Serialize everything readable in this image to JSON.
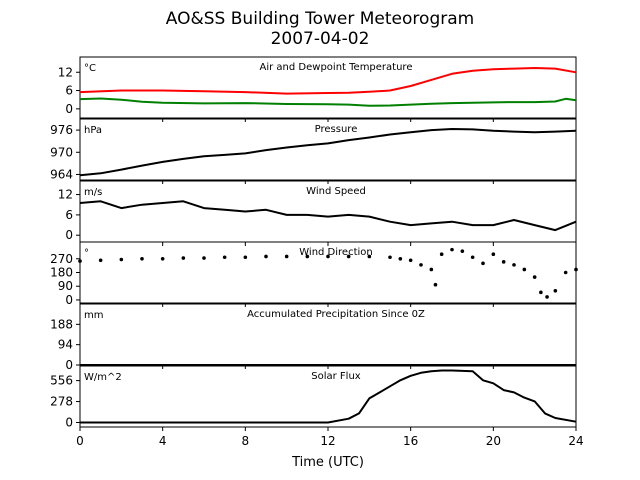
{
  "figure": {
    "title_line1": "AO&SS Building Tower Meteorogram",
    "title_line2": "2007-04-02",
    "xlabel": "Time (UTC)"
  },
  "chart_data": [
    {
      "type": "line",
      "title": "Air and Dewpoint Temperature",
      "unit": "°C",
      "ylim": [
        -3,
        17
      ],
      "yticks": [
        0,
        6,
        12
      ],
      "xlim": [
        0,
        24
      ],
      "xticks": [
        0,
        4,
        8,
        12,
        16,
        20,
        24
      ],
      "series": [
        {
          "color": "#ff0000",
          "x": [
            0,
            2,
            4,
            6,
            8,
            10,
            12,
            13,
            14,
            15,
            16,
            17,
            18,
            19,
            20,
            21,
            22,
            23,
            24
          ],
          "values": [
            5.5,
            6,
            6,
            5.8,
            5.5,
            5,
            5.2,
            5.3,
            5.6,
            6,
            7.5,
            9.5,
            11.5,
            12.5,
            13,
            13.2,
            13.4,
            13.2,
            12
          ]
        },
        {
          "color": "#008000",
          "x": [
            0,
            1,
            2,
            3,
            4,
            6,
            8,
            10,
            12,
            13,
            14,
            15,
            16,
            17,
            18,
            19,
            20,
            21,
            22,
            23,
            23.5,
            24
          ],
          "values": [
            3.2,
            3.4,
            3,
            2.3,
            2,
            1.8,
            1.9,
            1.6,
            1.5,
            1.4,
            1,
            1.1,
            1.4,
            1.7,
            1.9,
            2,
            2.1,
            2.2,
            2.2,
            2.4,
            3.3,
            2.8
          ]
        }
      ]
    },
    {
      "type": "line",
      "title": "Pressure",
      "unit": "hPa",
      "ylim": [
        962.5,
        979
      ],
      "yticks": [
        964,
        970,
        976
      ],
      "xlim": [
        0,
        24
      ],
      "series": [
        {
          "color": "#000000",
          "x": [
            0,
            1,
            2,
            3,
            4,
            5,
            6,
            7,
            8,
            9,
            10,
            11,
            12,
            13,
            14,
            15,
            16,
            17,
            18,
            19,
            20,
            21,
            22,
            23,
            24
          ],
          "values": [
            963.8,
            964.3,
            965.3,
            966.4,
            967.4,
            968.2,
            968.9,
            969.3,
            969.7,
            970.6,
            971.3,
            971.9,
            972.4,
            973.3,
            974.0,
            974.8,
            975.4,
            976.0,
            976.3,
            976.2,
            975.8,
            975.6,
            975.4,
            975.6,
            975.8
          ]
        }
      ]
    },
    {
      "type": "line",
      "title": "Wind Speed",
      "unit": "m/s",
      "ylim": [
        -2,
        16
      ],
      "yticks": [
        0,
        6,
        12
      ],
      "xlim": [
        0,
        24
      ],
      "series": [
        {
          "color": "#000000",
          "x": [
            0,
            1,
            2,
            3,
            4,
            5,
            6,
            7,
            8,
            9,
            10,
            11,
            12,
            13,
            14,
            15,
            16,
            17,
            18,
            19,
            20,
            21,
            22,
            23,
            24
          ],
          "values": [
            9.5,
            10,
            8,
            9,
            9.5,
            10,
            8,
            7.5,
            7,
            7.5,
            6,
            6,
            5.5,
            6,
            5.5,
            4,
            3,
            3.5,
            4,
            3,
            3,
            4.5,
            3,
            1.5,
            4
          ]
        }
      ]
    },
    {
      "type": "scatter",
      "title": "Wind Direction",
      "unit": "°",
      "ylim": [
        -20,
        380
      ],
      "yticks": [
        0,
        90,
        180,
        270
      ],
      "xlim": [
        0,
        24
      ],
      "series": [
        {
          "color": "#000000",
          "x": [
            0,
            1,
            2,
            3,
            4,
            5,
            6,
            7,
            8,
            9,
            10,
            11,
            12,
            13,
            14,
            15,
            15.5,
            16,
            16.5,
            17,
            17.2,
            17.5,
            18,
            18.5,
            19,
            19.5,
            20,
            20.5,
            21,
            21.5,
            22,
            22.3,
            22.6,
            23,
            23.5,
            24
          ],
          "values": [
            255,
            260,
            265,
            270,
            270,
            275,
            275,
            280,
            280,
            285,
            285,
            285,
            285,
            285,
            285,
            280,
            270,
            260,
            230,
            200,
            100,
            300,
            330,
            320,
            280,
            240,
            300,
            250,
            230,
            200,
            150,
            50,
            20,
            60,
            180,
            200
          ]
        }
      ]
    },
    {
      "type": "line",
      "title": "Accumulated Precipitation Since 0Z",
      "unit": "mm",
      "ylim": [
        0,
        282
      ],
      "yticks": [
        0,
        94,
        188
      ],
      "xlim": [
        0,
        24
      ],
      "series": [
        {
          "color": "#000000",
          "x": [
            0,
            24
          ],
          "values": [
            0,
            0
          ]
        }
      ]
    },
    {
      "type": "line",
      "title": "Solar Flux",
      "unit": "W/m^2",
      "ylim": [
        -60,
        750
      ],
      "yticks": [
        0,
        278,
        556
      ],
      "xlim": [
        0,
        24
      ],
      "series": [
        {
          "color": "#000000",
          "x": [
            0,
            12,
            13,
            13.5,
            14,
            14.5,
            15,
            15.5,
            16,
            16.5,
            17,
            17.5,
            18,
            19,
            19.5,
            20,
            20.5,
            21,
            21.5,
            22,
            22.5,
            23,
            24
          ],
          "values": [
            0,
            0,
            50,
            120,
            320,
            400,
            480,
            560,
            620,
            660,
            680,
            690,
            690,
            680,
            560,
            520,
            430,
            400,
            330,
            280,
            120,
            60,
            10
          ]
        }
      ]
    }
  ]
}
